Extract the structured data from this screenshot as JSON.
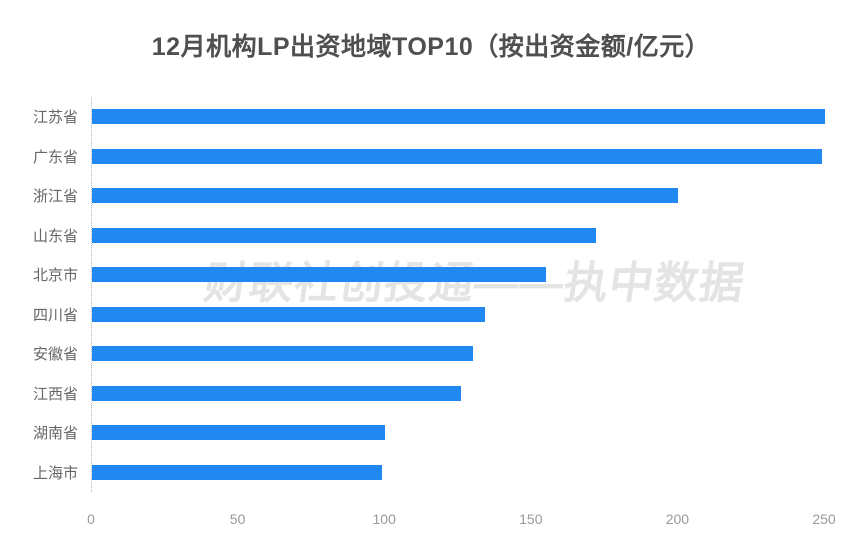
{
  "chart_data": {
    "type": "bar",
    "orientation": "horizontal",
    "title": "12月机构LP出资地域TOP10（按出资金额/亿元）",
    "categories": [
      "江苏省",
      "广东省",
      "浙江省",
      "山东省",
      "北京市",
      "四川省",
      "安徽省",
      "江西省",
      "湖南省",
      "上海市"
    ],
    "values": [
      250,
      249,
      200,
      172,
      155,
      134,
      130,
      126,
      100,
      99
    ],
    "xlabel": "",
    "ylabel": "",
    "xlim": [
      0,
      250
    ],
    "x_ticks": [
      0,
      50,
      100,
      150,
      200,
      250
    ],
    "grid": false,
    "legend": false,
    "bar_color": "#2188F2"
  },
  "watermark": {
    "text": "财联社创投通——执中数据",
    "color": "#E4E4E4"
  },
  "colors": {
    "background": "#FFFFFF",
    "title_text": "#4F4F4F",
    "category_label": "#666666",
    "tick_label": "#999999",
    "axis_line": "#B9B9B9"
  }
}
